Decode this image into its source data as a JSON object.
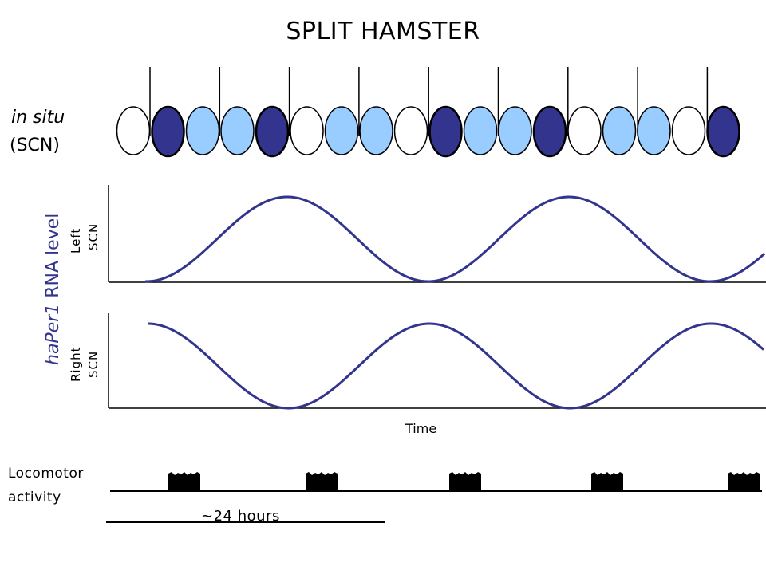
{
  "title": "SPLIT HAMSTER",
  "in_situ": {
    "line1": "in situ",
    "line2": "(SCN)"
  },
  "ylabel": {
    "gene": "haPer1",
    "rest": " RNA level"
  },
  "panels": {
    "left": [
      "Left",
      "SCN"
    ],
    "right": [
      "Right",
      "SCN"
    ]
  },
  "x_axis_label": "Time",
  "locomotor": {
    "line1": "Locomotor",
    "line2": "activity"
  },
  "period_label": "~24 hours",
  "colors": {
    "dark": "#33348e",
    "light": "#99ccff",
    "white": "#ffffff",
    "curve": "#33348e",
    "axis": "#000000"
  },
  "ellipse_sequence": [
    "white",
    "dark",
    "light",
    "light",
    "dark",
    "white",
    "light",
    "light",
    "white",
    "dark",
    "light",
    "light",
    "dark",
    "white",
    "light",
    "light",
    "white",
    "dark"
  ],
  "activity_bouts": 5,
  "icons": [
    "tick-line",
    "scn-ellipse",
    "activity-bout"
  ]
}
